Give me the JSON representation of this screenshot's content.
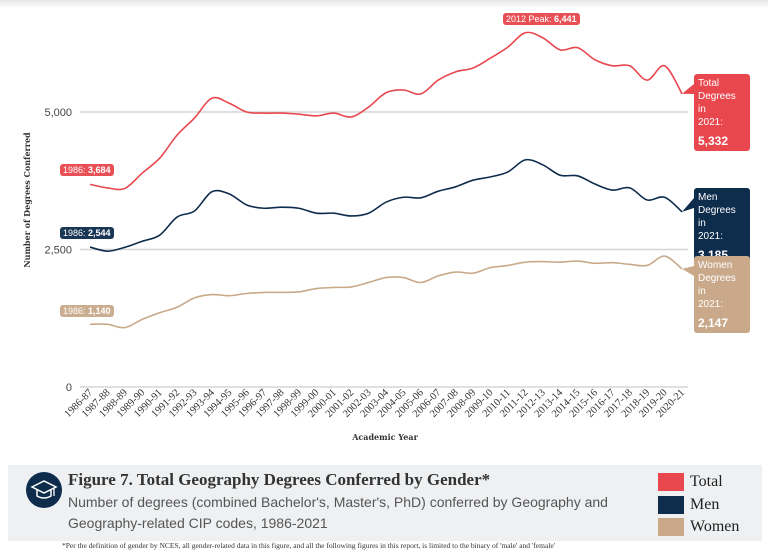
{
  "chart_data": {
    "type": "line",
    "title": "Figure 7. Total Geography Degrees Conferred by Gender*",
    "subtitle": "Number of degrees (combined Bachelor's, Master's, PhD) conferred by Geography and Geography-related CIP codes, 1986-2021",
    "xlabel": "Academic Year",
    "ylabel": "Number of Degrees Conferred",
    "ylim": [
      0,
      6500
    ],
    "yticks": [
      0,
      2500,
      5000
    ],
    "ytick_labels": [
      "0",
      "2,500",
      "5,000"
    ],
    "grid": true,
    "legend_position": "bottom-right",
    "categories": [
      "1986-87",
      "1987-88",
      "1988-89",
      "1989-90",
      "1990-91",
      "1991-92",
      "1992-93",
      "1993-94",
      "1994-95",
      "1995-96",
      "1996-97",
      "1997-98",
      "1998-99",
      "1999-00",
      "2000-01",
      "2001-02",
      "2002-03",
      "2003-04",
      "2004-05",
      "2005-06",
      "2006-07",
      "2007-08",
      "2008-09",
      "2009-10",
      "2010-11",
      "2011-12",
      "2012-13",
      "2013-14",
      "2014-15",
      "2015-16",
      "2016-17",
      "2017-18",
      "2018-19",
      "2019-20",
      "2020-21"
    ],
    "series": [
      {
        "name": "Total",
        "color": "#e8474e",
        "values": [
          3684,
          3620,
          3610,
          3890,
          4160,
          4580,
          4890,
          5250,
          5160,
          5000,
          4980,
          4980,
          4960,
          4930,
          4980,
          4910,
          5090,
          5350,
          5400,
          5330,
          5580,
          5730,
          5800,
          5980,
          6180,
          6441,
          6350,
          6130,
          6170,
          5950,
          5840,
          5840,
          5580,
          5840,
          5332
        ]
      },
      {
        "name": "Men",
        "color": "#0e2c4c",
        "values": [
          2544,
          2470,
          2540,
          2650,
          2760,
          3090,
          3200,
          3550,
          3510,
          3310,
          3250,
          3270,
          3250,
          3160,
          3160,
          3110,
          3160,
          3360,
          3450,
          3440,
          3560,
          3640,
          3760,
          3820,
          3910,
          4130,
          4040,
          3850,
          3840,
          3690,
          3580,
          3620,
          3400,
          3450,
          3185
        ]
      },
      {
        "name": "Women",
        "color": "#c9a98a",
        "values": [
          1140,
          1140,
          1080,
          1230,
          1350,
          1450,
          1620,
          1680,
          1660,
          1700,
          1720,
          1720,
          1730,
          1790,
          1810,
          1820,
          1900,
          1990,
          1990,
          1900,
          2020,
          2090,
          2070,
          2170,
          2210,
          2270,
          2280,
          2270,
          2290,
          2250,
          2260,
          2230,
          2210,
          2380,
          2147
        ]
      }
    ],
    "annotations": {
      "start_total": {
        "prefix": "1986: ",
        "value": "3,684"
      },
      "start_men": {
        "prefix": "1986: ",
        "value": "2,544"
      },
      "start_women": {
        "prefix": "1986: ",
        "value": "1,140"
      },
      "peak": {
        "prefix": "2012 Peak: ",
        "value": "6,441"
      },
      "end_total": {
        "label1": "Total",
        "label2": "Degrees in",
        "label3": "2021:",
        "value": "5,332"
      },
      "end_men": {
        "label1": "Men",
        "label2": "Degrees in",
        "label3": "2021:",
        "value": "3,185"
      },
      "end_women": {
        "label1": "Women",
        "label2": "Degrees in",
        "label3": "2021:",
        "value": "2,147"
      }
    }
  },
  "legend": [
    {
      "label": "Total",
      "color": "#e8474e"
    },
    {
      "label": "Men",
      "color": "#0e2c4c"
    },
    {
      "label": "Women",
      "color": "#c9a98a"
    }
  ],
  "icon": "graduation-cap-icon",
  "footnote": "*Per the definition of gender by NCES, all gender-related data in this figure, and all the following figures in this report, is limited to the binary of 'male' and 'female'"
}
